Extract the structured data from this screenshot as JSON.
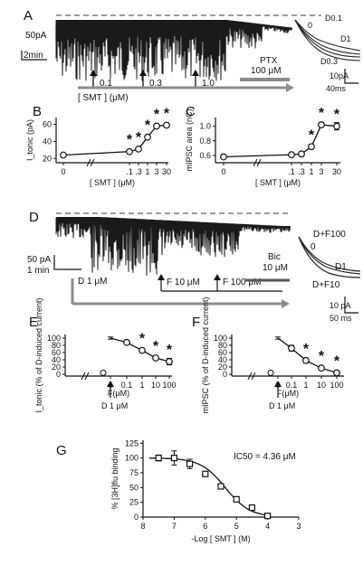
{
  "panels": [
    "A",
    "B",
    "C",
    "D",
    "E",
    "F",
    "G"
  ],
  "colors": {
    "ink": "#111111",
    "grey": "#8c8c8c",
    "dash": "#9a9a9a",
    "trace": "#1a1a1a"
  },
  "panelA": {
    "scale_y": "50pA",
    "scale_x": "2min",
    "doses": [
      "0.1",
      "0.3",
      "1.0"
    ],
    "drug_bar": "[ SMT ] (μM)",
    "ptx": [
      "PTX",
      "100 μM"
    ],
    "inset_labels": [
      "D0.1",
      "0",
      "D1",
      "D0.3"
    ],
    "inset_scale_y": "10pA",
    "inset_scale_x": "40ms"
  },
  "panelD": {
    "scale_y": "50 pA",
    "scale_x": "1 min",
    "bar1": "D 1 μM",
    "bar2": "F 10 μM",
    "bar3": "F 100 μM",
    "bic": [
      "Bic",
      "10 μM"
    ],
    "inset_labels": [
      "D+F100",
      "0",
      "D1",
      "D+F10"
    ],
    "inset_scale_y": "10 pA",
    "inset_scale_x": "50 ms"
  },
  "chart_data": [
    {
      "id": "B",
      "type": "line",
      "ylabel": "I_tonic (pA)",
      "xlabel": "[ SMT ] (μM)",
      "x": [
        "0",
        "0.1",
        "0.3",
        "1",
        "3",
        "30"
      ],
      "x_tick_labels": [
        "0",
        ".1",
        ".3",
        "1",
        "3",
        "30"
      ],
      "values": [
        24,
        28,
        31,
        45,
        58,
        59
      ],
      "sig": [
        false,
        true,
        true,
        true,
        true,
        true
      ],
      "yticks": [
        20,
        40,
        60
      ],
      "ylim": [
        15,
        68
      ]
    },
    {
      "id": "C",
      "type": "line",
      "ylabel": "mIPSC area (nC)",
      "xlabel": "[ SMT ] (μM)",
      "x": [
        "0",
        "0.1",
        "0.3",
        "1",
        "3",
        "30"
      ],
      "x_tick_labels": [
        "0",
        ".1",
        ".3",
        "1",
        "3",
        "30"
      ],
      "values": [
        0.58,
        0.61,
        0.62,
        0.72,
        1.02,
        1.0
      ],
      "err": [
        0.02,
        0.02,
        0.03,
        0.03,
        0.03,
        0.05
      ],
      "sig": [
        false,
        false,
        false,
        true,
        true,
        true
      ],
      "yticks": [
        0.6,
        0.8,
        1.0
      ],
      "ytick_labels": [
        "0.6",
        "0.8",
        "1.0"
      ],
      "ylim": [
        0.5,
        1.12
      ]
    },
    {
      "id": "E",
      "type": "line",
      "ylabel": "I_tonic (% of D-induced current)",
      "xlabel": "F(μM)",
      "x": [
        "0",
        "0.1",
        "1",
        "10",
        "100"
      ],
      "x_tick_labels": [
        "0",
        "0.1",
        "1",
        "10",
        "100"
      ],
      "break_point": {
        "x": "0",
        "value": 4
      },
      "values": [
        100,
        88,
        66,
        45,
        35
      ],
      "err": [
        3,
        3,
        4,
        5,
        9
      ],
      "sig": [
        false,
        false,
        true,
        true,
        true
      ],
      "yticks": [
        0,
        20,
        40,
        60,
        80,
        100
      ],
      "ylim": [
        -5,
        110
      ],
      "arrow_label": "D 1 μM"
    },
    {
      "id": "F",
      "type": "line",
      "ylabel": "mIPSC (% of D-induced current)",
      "xlabel": "F(μM)",
      "x": [
        "0",
        "0.1",
        "1",
        "10",
        "100"
      ],
      "x_tick_labels": [
        "0",
        "0.1",
        "1",
        "10",
        "100"
      ],
      "break_point": {
        "x": "0",
        "value": 4
      },
      "values": [
        100,
        72,
        38,
        17,
        4
      ],
      "err": [
        3,
        8,
        7,
        5,
        6
      ],
      "sig": [
        false,
        false,
        true,
        true,
        true
      ],
      "yticks": [
        0,
        20,
        40,
        60,
        80,
        100
      ],
      "ylim": [
        -5,
        110
      ],
      "arrow_label": "D 1 μM"
    },
    {
      "id": "G",
      "type": "line",
      "ylabel": "% [3H]flu binding",
      "xlabel": "-Log [ SMT ] (M)",
      "annotation": "IC50 = 4.36 μM",
      "x": [
        7.5,
        7.0,
        6.5,
        6.0,
        5.5,
        5.0,
        4.5,
        4.0
      ],
      "values": [
        100,
        100,
        90,
        73,
        52,
        30,
        16,
        2
      ],
      "err": [
        5,
        12,
        8,
        4,
        3,
        3,
        2,
        2
      ],
      "xticks": [
        8,
        7,
        6,
        5,
        4,
        3
      ],
      "xlim": [
        8,
        3
      ],
      "yticks": [
        0,
        25,
        50,
        75,
        100,
        125
      ],
      "ylim": [
        0,
        130
      ]
    }
  ]
}
